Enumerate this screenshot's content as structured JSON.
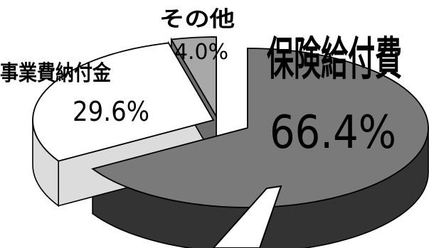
{
  "chart_data": {
    "type": "pie",
    "title": "",
    "slices": [
      {
        "name": "保険給付費",
        "value": 66.4,
        "label": "66.4%",
        "top_color": "#7a7a7a",
        "side_color": "#333333"
      },
      {
        "name": "事業費納付金",
        "value": 29.6,
        "label": "29.6%",
        "top_color": "#ffffff",
        "side_color": "#dcdcdc"
      },
      {
        "name": "その他",
        "value": 4.0,
        "label": "4.0%",
        "top_color": "#a8a8a8",
        "side_color": "#6e6e6e"
      }
    ],
    "legend": "none",
    "style": "3d-exploded"
  }
}
